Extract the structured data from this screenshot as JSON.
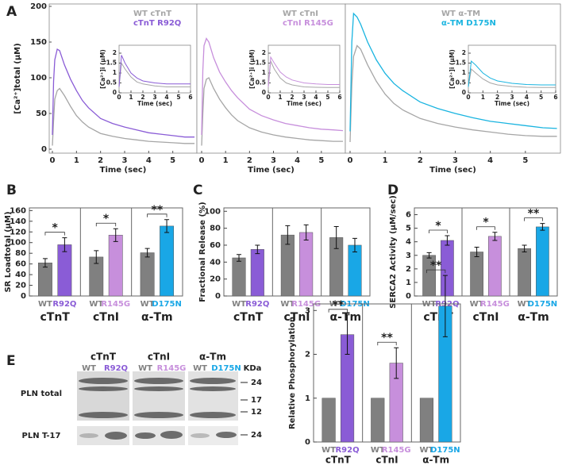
{
  "panel_labels": [
    "A",
    "B",
    "C",
    "D",
    "E"
  ],
  "chart_data": [
    {
      "type": "line",
      "ylabel": "[Ca²⁺]total (μM)",
      "xlabel": "Time (sec)",
      "xlim": [
        0,
        6
      ],
      "ylim": [
        0,
        200
      ],
      "xticks": [
        0,
        1,
        2,
        3,
        4,
        5
      ],
      "yticks": [
        0,
        50,
        100,
        150,
        200
      ],
      "x": [
        0,
        0.05,
        0.1,
        0.2,
        0.3,
        0.5,
        0.75,
        1,
        1.25,
        1.5,
        2,
        2.5,
        3,
        3.5,
        4,
        4.5,
        5,
        5.5,
        5.9
      ],
      "series": [
        {
          "name": "WT cTnT",
          "color": "#a6a6a6",
          "values": [
            5,
            40,
            70,
            82,
            85,
            75,
            60,
            47,
            38,
            31,
            22,
            18,
            15,
            13,
            11,
            10,
            9,
            8,
            8
          ]
        },
        {
          "name": "cTnT R92Q",
          "color": "#8a5cd6",
          "values": [
            20,
            95,
            125,
            140,
            138,
            118,
            98,
            82,
            68,
            58,
            43,
            36,
            31,
            27,
            23,
            21,
            19,
            17,
            17
          ]
        }
      ]
    },
    {
      "type": "line",
      "xlabel": "Time (sec)",
      "xlim": [
        0,
        6
      ],
      "ylim": [
        0,
        200
      ],
      "xticks": [
        0,
        1,
        2,
        3,
        4,
        5
      ],
      "x": [
        0,
        0.05,
        0.1,
        0.2,
        0.3,
        0.5,
        0.75,
        1,
        1.25,
        1.5,
        2,
        2.5,
        3,
        3.5,
        4,
        4.5,
        5,
        5.5,
        5.9
      ],
      "series": [
        {
          "name": "WT cTnI",
          "color": "#a6a6a6",
          "values": [
            5,
            50,
            85,
            98,
            100,
            85,
            70,
            58,
            48,
            40,
            30,
            24,
            20,
            17,
            15,
            13,
            12,
            11,
            11
          ]
        },
        {
          "name": "cTnI R145G",
          "color": "#c78fdc",
          "values": [
            20,
            110,
            145,
            155,
            150,
            128,
            108,
            94,
            82,
            72,
            56,
            47,
            41,
            36,
            33,
            30,
            28,
            27,
            26
          ]
        }
      ]
    },
    {
      "type": "line",
      "xlabel": "Time (sec)",
      "xlim": [
        0,
        6
      ],
      "ylim": [
        0,
        200
      ],
      "xticks": [
        0,
        1,
        2,
        3,
        4,
        5
      ],
      "x": [
        0,
        0.05,
        0.1,
        0.2,
        0.3,
        0.5,
        0.75,
        1,
        1.25,
        1.5,
        2,
        2.5,
        3,
        3.5,
        4,
        4.5,
        5,
        5.5,
        5.9
      ],
      "series": [
        {
          "name": "WT α-TM",
          "color": "#a6a6a6",
          "values": [
            10,
            90,
            130,
            145,
            140,
            118,
            95,
            77,
            64,
            55,
            43,
            36,
            31,
            27,
            24,
            21,
            19,
            18,
            18
          ]
        },
        {
          "name": "α-TM D175N",
          "color": "#19b4e0",
          "values": [
            25,
            150,
            190,
            185,
            175,
            150,
            125,
            106,
            92,
            82,
            66,
            57,
            50,
            44,
            39,
            36,
            33,
            30,
            29
          ]
        }
      ]
    },
    {
      "type": "line",
      "ylabel": "[Ca²⁺]i (μM)",
      "xlabel": "Time (sec)",
      "xlim": [
        0,
        6
      ],
      "ylim": [
        0,
        2.4
      ],
      "xticks": [
        0,
        1,
        2,
        3,
        4,
        5,
        6
      ],
      "yticks": [
        0,
        0.5,
        1,
        1.5,
        2
      ],
      "x": [
        0,
        0.2,
        0.5,
        1,
        1.5,
        2,
        3,
        4,
        5,
        6
      ],
      "series": [
        {
          "color": "#a6a6a6",
          "values": [
            0.3,
            1.5,
            1.2,
            0.8,
            0.55,
            0.45,
            0.35,
            0.3,
            0.3,
            0.3
          ]
        },
        {
          "color": "#8a5cd6",
          "values": [
            0.3,
            1.9,
            1.5,
            1.0,
            0.75,
            0.6,
            0.5,
            0.45,
            0.45,
            0.45
          ]
        }
      ]
    },
    {
      "type": "line",
      "ylabel": "[Ca²⁺]i (μM)",
      "xlabel": "Time (sec)",
      "xlim": [
        0,
        6
      ],
      "ylim": [
        0,
        2.4
      ],
      "xticks": [
        0,
        1,
        2,
        3,
        4,
        5,
        6
      ],
      "yticks": [
        0,
        0.5,
        1,
        1.5,
        2
      ],
      "x": [
        0,
        0.2,
        0.5,
        1,
        1.5,
        2,
        3,
        4,
        5,
        6
      ],
      "series": [
        {
          "color": "#a6a6a6",
          "values": [
            0.3,
            1.6,
            1.2,
            0.75,
            0.5,
            0.4,
            0.3,
            0.28,
            0.27,
            0.27
          ]
        },
        {
          "color": "#c78fdc",
          "values": [
            0.3,
            1.8,
            1.5,
            1.05,
            0.8,
            0.65,
            0.5,
            0.45,
            0.42,
            0.42
          ]
        }
      ]
    },
    {
      "type": "line",
      "ylabel": "[Ca²⁺]i (μM)",
      "xlabel": "Time (sec)",
      "xlim": [
        0,
        6
      ],
      "ylim": [
        0,
        2.4
      ],
      "xticks": [
        0,
        1,
        2,
        3,
        4,
        5,
        6
      ],
      "yticks": [
        0,
        0.5,
        1,
        1.5,
        2
      ],
      "x": [
        0,
        0.2,
        0.5,
        1,
        1.5,
        2,
        3,
        4,
        5,
        6
      ],
      "series": [
        {
          "color": "#a6a6a6",
          "values": [
            0.3,
            1.2,
            1.0,
            0.7,
            0.5,
            0.4,
            0.32,
            0.28,
            0.27,
            0.27
          ]
        },
        {
          "color": "#19b4e0",
          "values": [
            0.3,
            1.6,
            1.4,
            1.0,
            0.75,
            0.6,
            0.48,
            0.42,
            0.4,
            0.4
          ]
        }
      ]
    },
    {
      "type": "bar",
      "ylabel": "SR Loadtotal (μM)",
      "ylim": [
        0,
        165
      ],
      "yticks": [
        0,
        20,
        40,
        60,
        80,
        100,
        120,
        140,
        160
      ],
      "groups": [
        "cTnT",
        "cTnI",
        "α-Tm"
      ],
      "categories": [
        "WT",
        "R92Q",
        "WT",
        "R145G",
        "WT",
        "D175N"
      ],
      "colors": [
        "#808080",
        "#8a5cd6",
        "#808080",
        "#c78fdc",
        "#808080",
        "#19a7e6"
      ],
      "values": [
        62,
        96,
        73,
        114,
        81,
        131
      ],
      "errors": [
        8,
        13,
        12,
        12,
        8,
        12
      ],
      "significance": [
        "*",
        "*",
        "**"
      ]
    },
    {
      "type": "bar",
      "ylabel": "Fractional Release (%)",
      "ylim": [
        0,
        104
      ],
      "yticks": [
        0,
        20,
        40,
        60,
        80,
        100
      ],
      "groups": [
        "cTnT",
        "cTnI",
        "α-Tm"
      ],
      "categories": [
        "WT",
        "R92Q",
        "WT",
        "R145G",
        "WT",
        "D175N"
      ],
      "colors": [
        "#808080",
        "#8a5cd6",
        "#808080",
        "#c78fdc",
        "#808080",
        "#19a7e6"
      ],
      "values": [
        45,
        55,
        72,
        75,
        69,
        60
      ],
      "errors": [
        4,
        5,
        11,
        9,
        13,
        8
      ]
    },
    {
      "type": "bar",
      "ylabel": "SERCA2 Activity (μM/sec)",
      "ylim": [
        0,
        6.5
      ],
      "yticks": [
        0,
        1,
        2,
        3,
        4,
        5,
        6
      ],
      "groups": [
        "cTnT",
        "cTnI",
        "α-Tm"
      ],
      "categories": [
        "WT",
        "R92Q",
        "WT",
        "R145G",
        "WT",
        "D175N"
      ],
      "colors": [
        "#808080",
        "#8a5cd6",
        "#808080",
        "#c78fdc",
        "#808080",
        "#19a7e6"
      ],
      "values": [
        3.0,
        4.1,
        3.25,
        4.4,
        3.5,
        5.1
      ],
      "errors": [
        0.2,
        0.35,
        0.35,
        0.3,
        0.25,
        0.25
      ],
      "significance": [
        "*",
        "*",
        "**"
      ]
    },
    {
      "type": "bar",
      "ylabel": "Relative Phosphorylation",
      "ylim": [
        0,
        3.15
      ],
      "yticks": [
        0,
        1,
        2,
        3
      ],
      "groups": [
        "cTnT",
        "cTnI",
        "α-Tm"
      ],
      "categories": [
        "WT",
        "R92Q",
        "WT",
        "R145G",
        "WT",
        "D175N"
      ],
      "colors": [
        "#808080",
        "#8a5cd6",
        "#808080",
        "#c78fdc",
        "#808080",
        "#19a7e6"
      ],
      "values": [
        1,
        2.45,
        1,
        1.8,
        1,
        3.1
      ],
      "errors": [
        0,
        0.45,
        0,
        0.35,
        0,
        0.7
      ],
      "significance": [
        "**",
        "**",
        "**"
      ]
    }
  ],
  "blot": {
    "groups": [
      "cTnT",
      "cTnI",
      "α-Tm"
    ],
    "lanes": [
      [
        "WT",
        "R92Q"
      ],
      [
        "WT",
        "R145G"
      ],
      [
        "WT",
        "D175N"
      ]
    ],
    "lane_colors": [
      [
        "#808080",
        "#8a5cd6"
      ],
      [
        "#808080",
        "#c78fdc"
      ],
      [
        "#808080",
        "#19a7e6"
      ]
    ],
    "rows": [
      "PLN total",
      "PLN T-17"
    ],
    "unit": "KDa",
    "markers": [
      24,
      17,
      12,
      24
    ]
  }
}
